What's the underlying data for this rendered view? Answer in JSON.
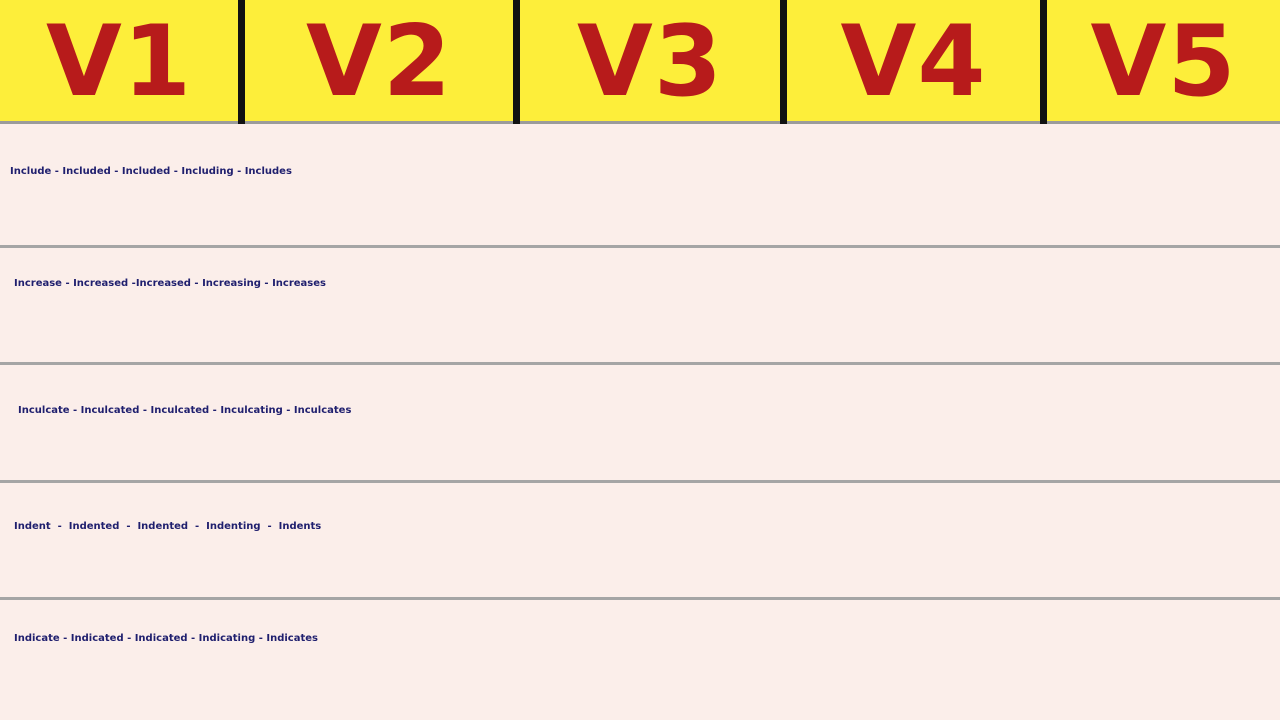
{
  "header": {
    "columns": [
      "V1",
      "V2",
      "V3",
      "V4",
      "V5"
    ],
    "bg_color": "#fdee3a",
    "text_color": "#b71b1b"
  },
  "rows": [
    "Include - Included - Included - Including - Includes",
    "Increase - Increased -Increased - Increasing - Increases",
    "Inculcate - Inculcated - Inculcated - Inculcating - Inculcates",
    "Indent  -  Indented  -  Indented  -  Indenting  -  Indents",
    "Indicate - Indicated - Indicated - Indicating - Indicates"
  ],
  "row_text_color": "#1f1f6e",
  "row_bg_color": "#fbeeea"
}
